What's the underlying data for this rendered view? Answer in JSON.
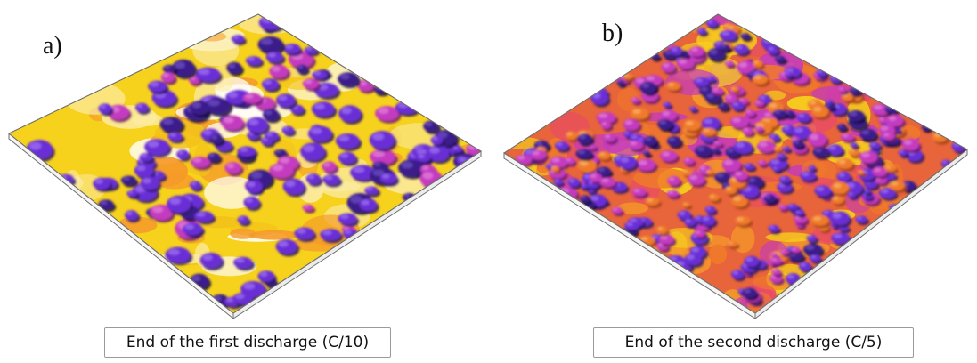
{
  "panels": [
    {
      "label": "a)",
      "caption": "End of the first discharge (C/10)",
      "dominant_color": "yellow"
    },
    {
      "label": "b)",
      "caption": "End of the second discharge (C/5)",
      "dominant_color": "magenta"
    }
  ],
  "colors": {
    "dark_violet": "#2a1666",
    "violet": "#6a2fd6",
    "magenta": "#c43ac0",
    "orange": "#f07a2a",
    "yellow": "#f6d21c",
    "pale_yellow": "#fbeaa0",
    "frame": "#6e6e6e"
  }
}
